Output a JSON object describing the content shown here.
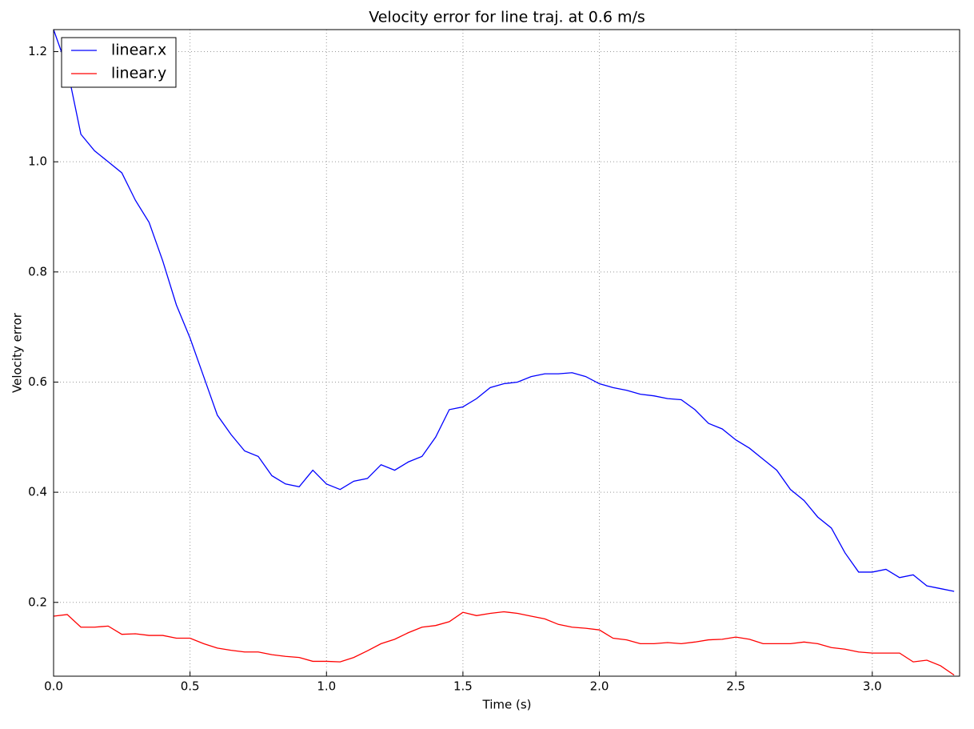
{
  "chart_data": {
    "type": "line",
    "title": "Velocity error for line traj. at 0.6 m/s",
    "x_label": "Time (s)",
    "y_label": "Velocity error",
    "x": [
      0,
      0.05,
      0.1,
      0.15,
      0.2,
      0.25,
      0.3,
      0.35,
      0.4,
      0.45,
      0.5,
      0.55,
      0.6,
      0.65,
      0.7,
      0.75,
      0.8,
      0.85,
      0.9,
      0.95,
      1.0,
      1.05,
      1.1,
      1.15,
      1.2,
      1.25,
      1.3,
      1.35,
      1.4,
      1.45,
      1.5,
      1.55,
      1.6,
      1.65,
      1.7,
      1.75,
      1.8,
      1.85,
      1.9,
      1.95,
      2.0,
      2.05,
      2.1,
      2.15,
      2.2,
      2.25,
      2.3,
      2.35,
      2.4,
      2.45,
      2.5,
      2.55,
      2.6,
      2.65,
      2.7,
      2.75,
      2.8,
      2.85,
      2.9,
      2.95,
      3.0,
      3.05,
      3.1,
      3.15,
      3.2,
      3.25,
      3.3
    ],
    "series": [
      {
        "name": "linear.x",
        "color": "#0000ff",
        "values": [
          1.24,
          1.17,
          1.05,
          1.02,
          1.0,
          0.98,
          0.93,
          0.89,
          0.82,
          0.74,
          0.68,
          0.61,
          0.54,
          0.505,
          0.475,
          0.465,
          0.43,
          0.415,
          0.41,
          0.44,
          0.415,
          0.405,
          0.42,
          0.425,
          0.45,
          0.44,
          0.455,
          0.465,
          0.5,
          0.55,
          0.555,
          0.57,
          0.59,
          0.597,
          0.6,
          0.61,
          0.615,
          0.615,
          0.617,
          0.61,
          0.597,
          0.59,
          0.585,
          0.578,
          0.575,
          0.57,
          0.568,
          0.55,
          0.525,
          0.515,
          0.495,
          0.48,
          0.46,
          0.44,
          0.405,
          0.385,
          0.355,
          0.335,
          0.29,
          0.255,
          0.255,
          0.26,
          0.245,
          0.25,
          0.23,
          0.225,
          0.22
        ]
      },
      {
        "name": "linear.y",
        "color": "#ff0000",
        "values": [
          0.175,
          0.178,
          0.155,
          0.155,
          0.157,
          0.142,
          0.143,
          0.14,
          0.14,
          0.135,
          0.135,
          0.125,
          0.117,
          0.113,
          0.11,
          0.11,
          0.105,
          0.102,
          0.1,
          0.093,
          0.093,
          0.092,
          0.1,
          0.112,
          0.125,
          0.133,
          0.145,
          0.155,
          0.158,
          0.165,
          0.182,
          0.176,
          0.18,
          0.183,
          0.18,
          0.175,
          0.17,
          0.16,
          0.155,
          0.153,
          0.15,
          0.135,
          0.132,
          0.125,
          0.125,
          0.127,
          0.125,
          0.128,
          0.132,
          0.133,
          0.137,
          0.133,
          0.125,
          0.125,
          0.125,
          0.128,
          0.125,
          0.118,
          0.115,
          0.11,
          0.108,
          0.108,
          0.108,
          0.092,
          0.095,
          0.085,
          0.068
        ]
      }
    ],
    "xlim": [
      0,
      3.32
    ],
    "ylim": [
      0.066,
      1.24
    ],
    "xticks": [
      {
        "value": 0,
        "label": "0.0"
      },
      0.5,
      {
        "value": 1,
        "label": "1.0"
      },
      1.5,
      {
        "value": 2,
        "label": "2.0"
      },
      2.5,
      {
        "value": 3,
        "label": "3.0"
      }
    ],
    "yticks": [
      0.2,
      0.4,
      0.6,
      0.8,
      {
        "value": 1,
        "label": "1.0"
      },
      1.2
    ],
    "grid": true,
    "legend": "upper-left"
  }
}
